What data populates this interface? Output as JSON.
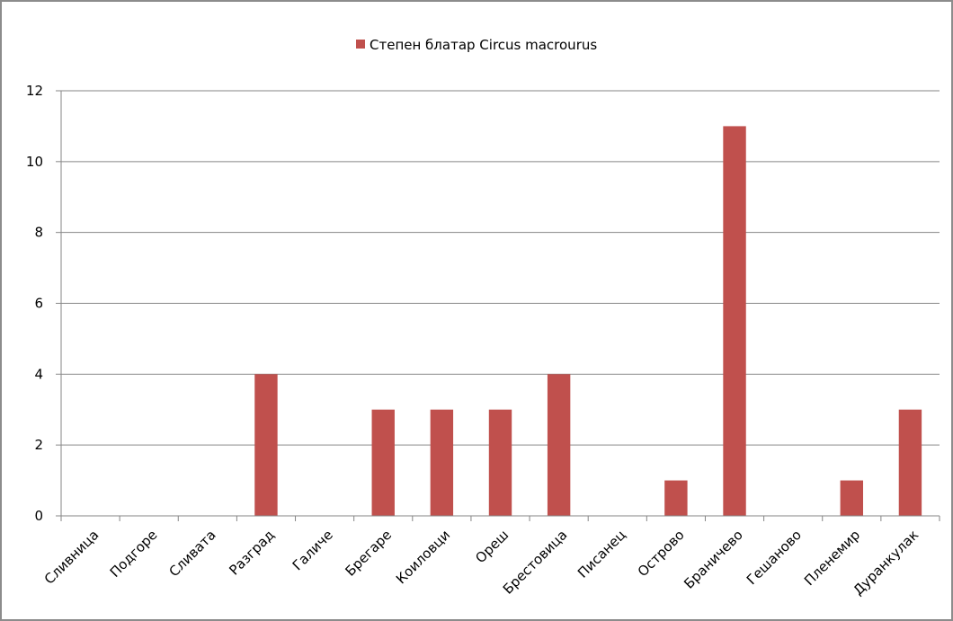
{
  "chart_data": {
    "type": "bar",
    "categories": [
      "Сливница",
      "Подгоре",
      "Сливата",
      "Разград",
      "Галиче",
      "Брегаре",
      "Коиловци",
      "Ореш",
      "Брестовица",
      "Писанец",
      "Острово",
      "Браничево",
      "Гешаново",
      "Пленемир",
      "Дуранкулак"
    ],
    "series": [
      {
        "name": "Степен блатар Circus macrourus",
        "values": [
          0,
          0,
          0,
          4,
          0,
          3,
          3,
          3,
          4,
          0,
          1,
          11,
          0,
          1,
          3
        ],
        "color": "#c0504d"
      }
    ],
    "title": "",
    "xlabel": "",
    "ylabel": "",
    "ylim": [
      0,
      12
    ],
    "yticks": [
      0,
      2,
      4,
      6,
      8,
      10,
      12
    ],
    "grid": true,
    "legend_position": "top"
  }
}
